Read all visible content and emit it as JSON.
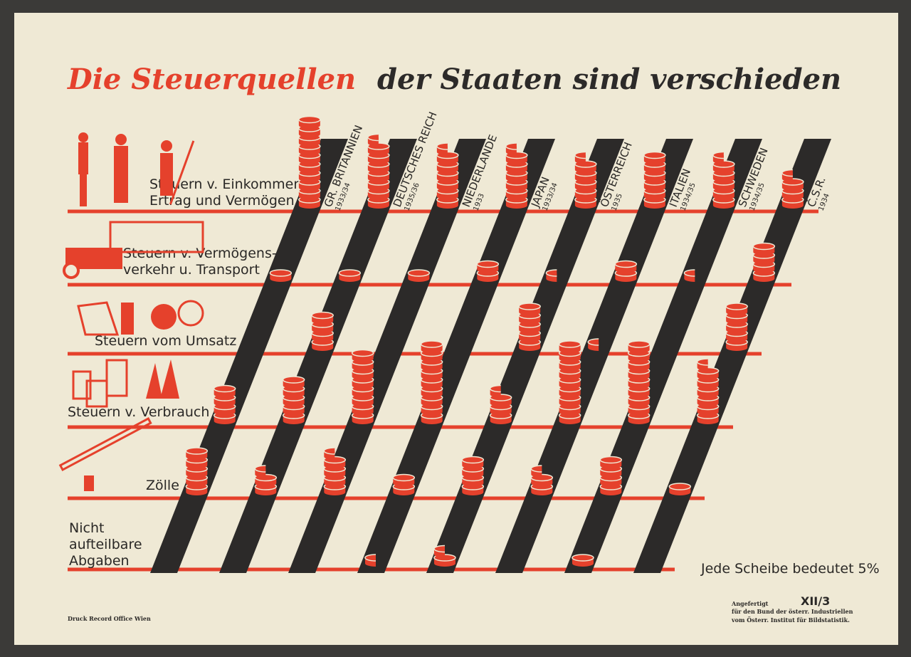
{
  "chart_data": {
    "type": "isotype",
    "title": "Die Steuerquellen",
    "subtitle": "der Staaten sind verschieden",
    "categories": [
      [
        "Steuern v. Einkommen,",
        "Ertrag und Vermögen"
      ],
      [
        "Steuern v. Vermögens-",
        "verkehr u. Transport"
      ],
      [
        "Steuern vom Umsatz"
      ],
      [
        "Steuern v. Verbrauch"
      ],
      [
        "Zölle"
      ],
      [
        "Nicht",
        "aufteilbare",
        "Abgaben"
      ]
    ],
    "series": [
      {
        "name": "GR. BRITANNIEN",
        "year": "1933/34",
        "values": [
          50,
          5,
          0,
          20,
          25,
          0
        ]
      },
      {
        "name": "DEUTSCHES REICH",
        "year": "1935/36",
        "values": [
          37.5,
          5,
          20,
          25,
          12.5,
          0
        ]
      },
      {
        "name": "NIEDERLANDE",
        "year": "1933",
        "values": [
          32.5,
          5,
          0,
          40,
          22.5,
          0
        ]
      },
      {
        "name": "JAPAN",
        "year": "1933/34",
        "values": [
          32.5,
          10,
          0,
          45,
          10,
          2.5
        ]
      },
      {
        "name": "ÖSTERREICH",
        "year": "1935",
        "values": [
          27.5,
          2.5,
          25,
          17.5,
          20,
          7.5
        ]
      },
      {
        "name": "ITALIEN",
        "year": "1934/35",
        "values": [
          30,
          10,
          2.5,
          45,
          12.5,
          0
        ]
      },
      {
        "name": "SCHWEDEN",
        "year": "1934/35",
        "values": [
          27.5,
          2.5,
          0,
          45,
          20,
          5
        ]
      },
      {
        "name": "Č.S.R.",
        "year": "1934",
        "values": [
          17.5,
          20,
          25,
          32.5,
          5,
          0
        ]
      }
    ],
    "disc_value": 5,
    "color": "#e5412c",
    "bar_color": "#2c2a29",
    "note": "Jede Scheibe bedeutet 5%",
    "code": "XII/3",
    "credit": [
      "Angefertigt",
      "für den Bund der österr. Industriellen",
      "vom Österr. Institut für Bildstatistik."
    ],
    "printer": "Druck Record Office Wien"
  }
}
